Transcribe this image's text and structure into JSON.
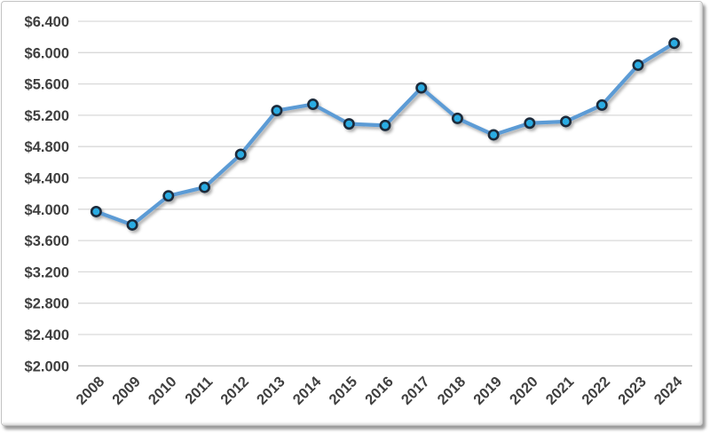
{
  "chart": {
    "background": "#ffffff",
    "colors": {
      "line": "#5B9BD5",
      "marker_fill": "#29ABE2",
      "marker_border": "#1C2B3A",
      "gridline": "#D9D9D9",
      "axis_line": "#C6C6C6",
      "tick_text": "#3F3F3F"
    }
  },
  "chart_data": {
    "type": "line",
    "title": "",
    "xlabel": "",
    "ylabel": "",
    "categories": [
      "2008",
      "2009",
      "2010",
      "2011",
      "2012",
      "2013",
      "2014",
      "2015",
      "2016",
      "2017",
      "2018",
      "2019",
      "2020",
      "2021",
      "2022",
      "2023",
      "2024"
    ],
    "series": [
      {
        "name": "",
        "values": [
          3970,
          3800,
          4170,
          4280,
          4700,
          5260,
          5340,
          5090,
          5070,
          5550,
          5160,
          4950,
          5100,
          5120,
          5330,
          5840,
          6120
        ]
      }
    ],
    "ylim": [
      2000,
      6400
    ],
    "y_tick_step": 400,
    "y_tick_labels": [
      "$6.400",
      "$6.000",
      "$5.600",
      "$5.200",
      "$4.800",
      "$4.400",
      "$4.000",
      "$3.600",
      "$3.200",
      "$2.800",
      "$2.400",
      "$2.000"
    ],
    "grid": true,
    "legend": false,
    "x_tick_rotation": 45,
    "marker": "circle"
  }
}
